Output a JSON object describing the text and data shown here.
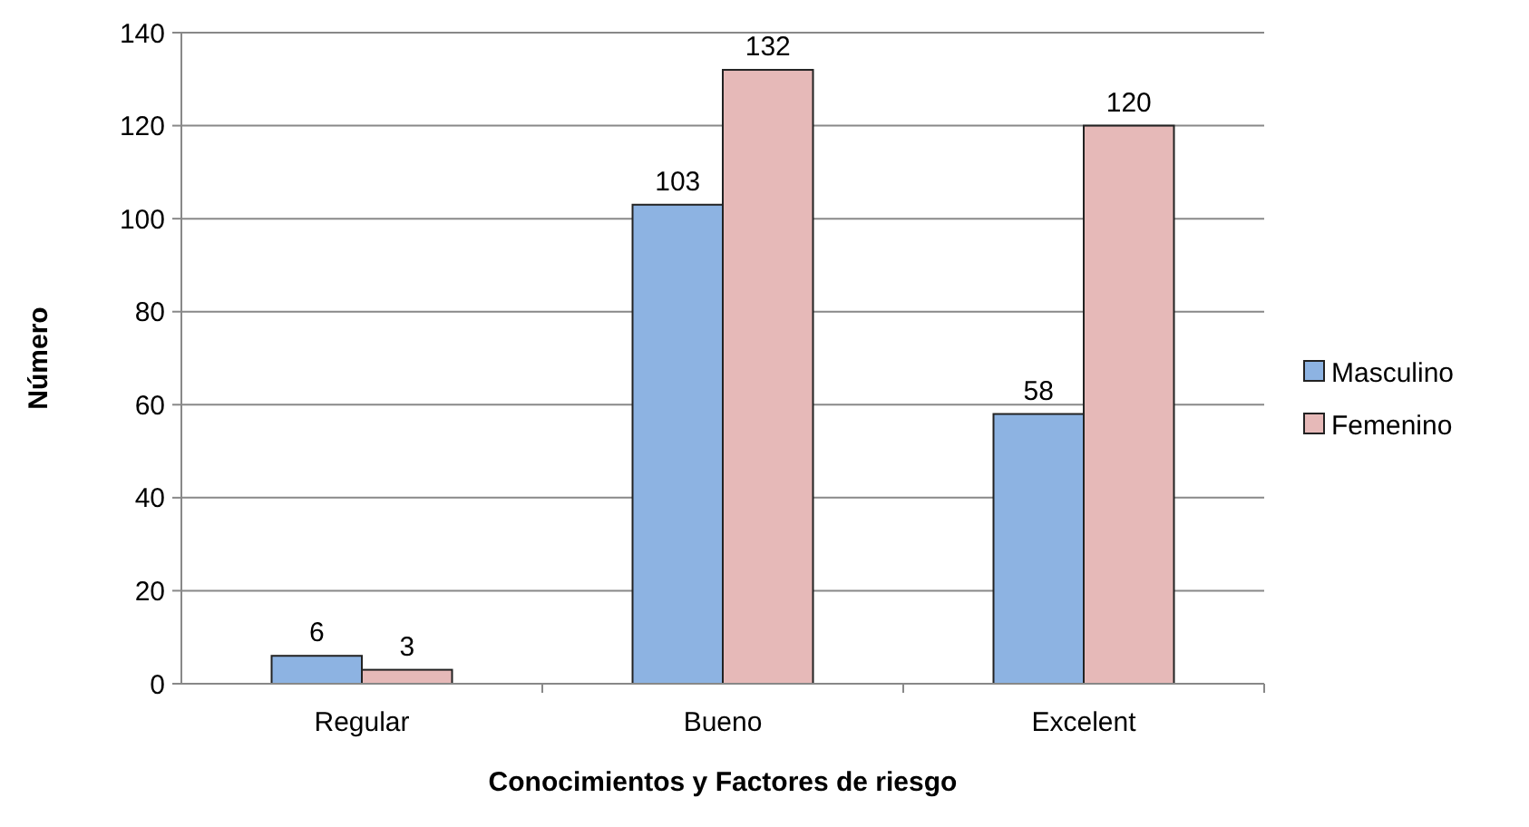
{
  "chart_data": {
    "type": "bar",
    "xlabel": "Conocimientos y Factores de riesgo",
    "ylabel": "Número",
    "categories": [
      "Regular",
      "Bueno",
      "Excelent"
    ],
    "series": [
      {
        "name": "Masculino",
        "color": "#8db3e2",
        "values": [
          6,
          103,
          58
        ]
      },
      {
        "name": "Femenino",
        "color": "#e6b9b8",
        "values": [
          3,
          132,
          120
        ]
      }
    ],
    "ylim": [
      0,
      140
    ],
    "yticks": [
      0,
      20,
      40,
      60,
      80,
      100,
      120,
      140
    ],
    "grid": "y",
    "legend": "right",
    "data_labels": true
  }
}
